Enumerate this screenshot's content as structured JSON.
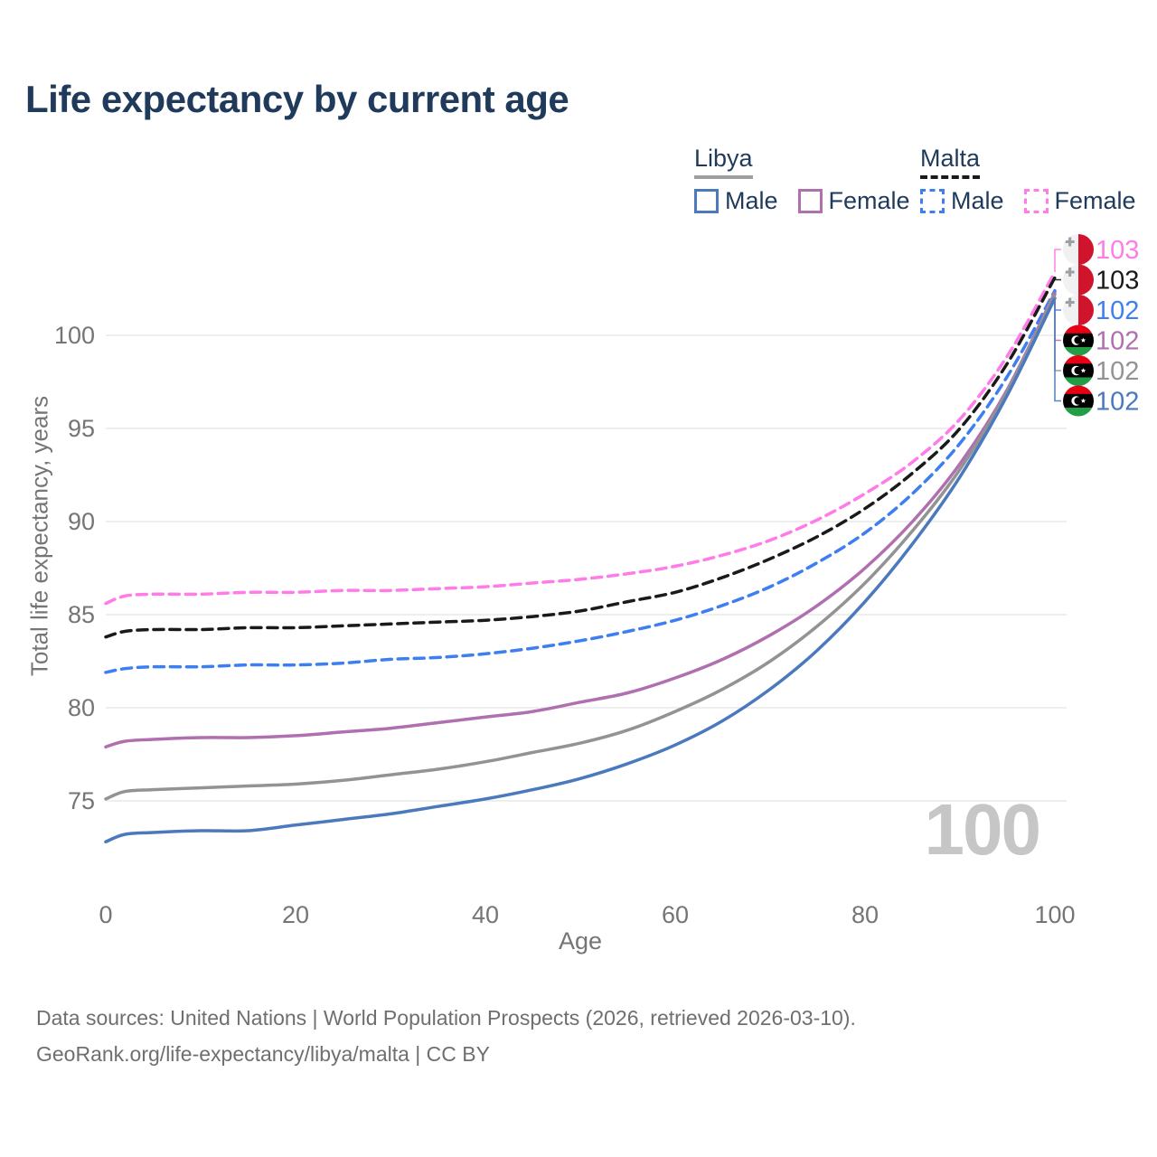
{
  "title": "Life expectancy by current age",
  "legend": {
    "groups": [
      {
        "country": "Libya",
        "line": {
          "color": "#9e9e9e",
          "dashed": false
        },
        "items": [
          {
            "label": "Male",
            "color": "#4a79bd",
            "dashed": false
          },
          {
            "label": "Female",
            "color": "#b06fae",
            "dashed": false
          }
        ]
      },
      {
        "country": "Malta",
        "line": {
          "color": "#1a1a1a",
          "dashed": true
        },
        "items": [
          {
            "label": "Male",
            "color": "#3d7ff0",
            "dashed": true
          },
          {
            "label": "Female",
            "color": "#ff7ce8",
            "dashed": true
          }
        ]
      }
    ]
  },
  "footer": {
    "source": "Data sources: United Nations | World Population Prospects (2026, retrieved 2026-03-10).",
    "license": "GeoRank.org/life-expectancy/libya/malta | CC BY"
  },
  "colors": {
    "title_text": "#1f3a5a",
    "axis_text": "#757575",
    "grid": "#e9e9e9",
    "footer_text": "#6f6f6f",
    "watermark": "#c6c6c6",
    "malta_flag_red": "#cf142b",
    "malta_flag_white": "#f1f1f1",
    "libya_flag_red": "#e70013",
    "libya_flag_black": "#000000",
    "libya_flag_green": "#239e46"
  },
  "chart_data": {
    "type": "line",
    "title": "Life expectancy by current age",
    "xlabel": "Age",
    "ylabel": "Total life expectancy, years",
    "xlim": [
      0,
      100
    ],
    "ylim": [
      72,
      106
    ],
    "xticks": [
      0,
      20,
      40,
      60,
      80,
      100
    ],
    "yticks": [
      75,
      80,
      85,
      90,
      95,
      100
    ],
    "grid": "horizontal",
    "legend_position": "top-right",
    "age_counter": "100",
    "ages": [
      0,
      2,
      5,
      10,
      15,
      20,
      25,
      30,
      35,
      40,
      45,
      50,
      55,
      60,
      65,
      70,
      75,
      80,
      85,
      90,
      95,
      100
    ],
    "series": [
      {
        "id": "malta-female",
        "name": "Malta Female",
        "country": "Malta",
        "sex": "Female",
        "color": "#ff7ce8",
        "dashed": true,
        "flag": "malta",
        "end_label": "103",
        "values": [
          85.6,
          86.0,
          86.1,
          86.1,
          86.2,
          86.2,
          86.3,
          86.3,
          86.4,
          86.5,
          86.7,
          86.9,
          87.2,
          87.6,
          88.2,
          89.0,
          90.1,
          91.5,
          93.2,
          95.5,
          98.9,
          103.4
        ]
      },
      {
        "id": "malta-both",
        "name": "Malta (both sexes)",
        "country": "Malta",
        "sex": "Both",
        "color": "#1a1a1a",
        "dashed": true,
        "flag": "malta",
        "end_label": "103",
        "values": [
          83.8,
          84.1,
          84.2,
          84.2,
          84.3,
          84.3,
          84.4,
          84.5,
          84.6,
          84.7,
          84.9,
          85.2,
          85.7,
          86.2,
          87.0,
          88.0,
          89.2,
          90.7,
          92.6,
          95.0,
          98.5,
          103.1
        ]
      },
      {
        "id": "malta-male",
        "name": "Malta Male",
        "country": "Malta",
        "sex": "Male",
        "color": "#3d7ff0",
        "dashed": true,
        "flag": "malta",
        "end_label": "102",
        "values": [
          81.9,
          82.1,
          82.2,
          82.2,
          82.3,
          82.3,
          82.4,
          82.6,
          82.7,
          82.9,
          83.2,
          83.6,
          84.1,
          84.7,
          85.5,
          86.5,
          87.8,
          89.4,
          91.5,
          94.2,
          97.8,
          102.4
        ]
      },
      {
        "id": "libya-female",
        "name": "Libya Female",
        "country": "Libya",
        "sex": "Female",
        "color": "#b06fae",
        "dashed": false,
        "flag": "libya",
        "end_label": "102",
        "values": [
          77.9,
          78.2,
          78.3,
          78.4,
          78.4,
          78.5,
          78.7,
          78.9,
          79.2,
          79.5,
          79.8,
          80.3,
          80.8,
          81.6,
          82.6,
          83.9,
          85.5,
          87.5,
          90.0,
          93.1,
          97.1,
          102.3
        ]
      },
      {
        "id": "libya-both",
        "name": "Libya (both sexes)",
        "country": "Libya",
        "sex": "Both",
        "color": "#939393",
        "dashed": false,
        "flag": "libya",
        "end_label": "102",
        "values": [
          75.1,
          75.5,
          75.6,
          75.7,
          75.8,
          75.9,
          76.1,
          76.4,
          76.7,
          77.1,
          77.6,
          78.1,
          78.8,
          79.8,
          81.0,
          82.5,
          84.4,
          86.7,
          89.5,
          92.8,
          97.0,
          102.2
        ]
      },
      {
        "id": "libya-male",
        "name": "Libya Male",
        "country": "Libya",
        "sex": "Male",
        "color": "#4a79bd",
        "dashed": false,
        "flag": "libya",
        "end_label": "102",
        "values": [
          72.8,
          73.2,
          73.3,
          73.4,
          73.4,
          73.7,
          74.0,
          74.3,
          74.7,
          75.1,
          75.6,
          76.2,
          77.0,
          78.0,
          79.3,
          81.0,
          83.1,
          85.7,
          88.8,
          92.4,
          96.8,
          102.0
        ]
      }
    ]
  }
}
